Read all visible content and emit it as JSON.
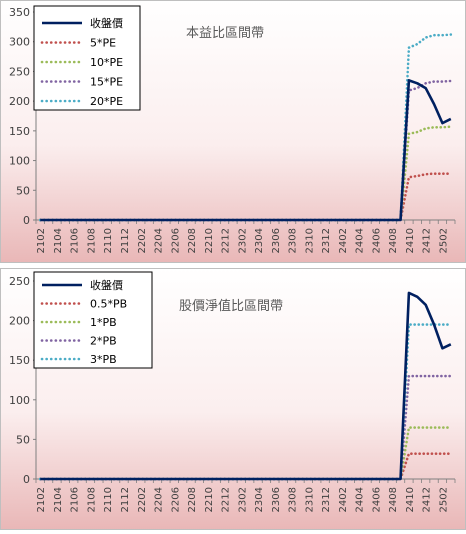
{
  "chart_data": [
    {
      "type": "line",
      "title": "本益比區間帶",
      "y_ticks": [
        0,
        50,
        100,
        150,
        200,
        250,
        300,
        350
      ],
      "ylim": [
        0,
        350
      ],
      "x_tick_labels": [
        "2102",
        "2104",
        "2106",
        "2108",
        "2110",
        "2112",
        "2202",
        "2204",
        "2206",
        "2208",
        "2210",
        "2212",
        "2302",
        "2304",
        "2306",
        "2308",
        "2310",
        "2312",
        "2402",
        "2404",
        "2406",
        "2408",
        "2410",
        "2412",
        "2502"
      ],
      "n_points": 50,
      "legend_position": "top-left",
      "grid": false,
      "series": [
        {
          "name": "收盤價",
          "color": "#002060",
          "style": "solid",
          "values": [
            0,
            0,
            0,
            0,
            0,
            0,
            0,
            0,
            0,
            0,
            0,
            0,
            0,
            0,
            0,
            0,
            0,
            0,
            0,
            0,
            0,
            0,
            0,
            0,
            0,
            0,
            0,
            0,
            0,
            0,
            0,
            0,
            0,
            0,
            0,
            0,
            0,
            0,
            0,
            0,
            0,
            0,
            0,
            0,
            235,
            230,
            222,
            195,
            163,
            170
          ]
        },
        {
          "name": "5*PE",
          "color": "#c0504d",
          "style": "dotted",
          "values": [
            0,
            0,
            0,
            0,
            0,
            0,
            0,
            0,
            0,
            0,
            0,
            0,
            0,
            0,
            0,
            0,
            0,
            0,
            0,
            0,
            0,
            0,
            0,
            0,
            0,
            0,
            0,
            0,
            0,
            0,
            0,
            0,
            0,
            0,
            0,
            0,
            0,
            0,
            0,
            0,
            0,
            0,
            0,
            0,
            72,
            74,
            77,
            78,
            78,
            78
          ]
        },
        {
          "name": "10*PE",
          "color": "#9bbb59",
          "style": "dotted",
          "values": [
            0,
            0,
            0,
            0,
            0,
            0,
            0,
            0,
            0,
            0,
            0,
            0,
            0,
            0,
            0,
            0,
            0,
            0,
            0,
            0,
            0,
            0,
            0,
            0,
            0,
            0,
            0,
            0,
            0,
            0,
            0,
            0,
            0,
            0,
            0,
            0,
            0,
            0,
            0,
            0,
            0,
            0,
            0,
            0,
            145,
            148,
            154,
            156,
            156,
            157
          ]
        },
        {
          "name": "15*PE",
          "color": "#8064a2",
          "style": "dotted",
          "values": [
            0,
            0,
            0,
            0,
            0,
            0,
            0,
            0,
            0,
            0,
            0,
            0,
            0,
            0,
            0,
            0,
            0,
            0,
            0,
            0,
            0,
            0,
            0,
            0,
            0,
            0,
            0,
            0,
            0,
            0,
            0,
            0,
            0,
            0,
            0,
            0,
            0,
            0,
            0,
            0,
            0,
            0,
            0,
            0,
            218,
            222,
            230,
            233,
            233,
            234
          ]
        },
        {
          "name": "20*PE",
          "color": "#4bacc6",
          "style": "dotted",
          "values": [
            0,
            0,
            0,
            0,
            0,
            0,
            0,
            0,
            0,
            0,
            0,
            0,
            0,
            0,
            0,
            0,
            0,
            0,
            0,
            0,
            0,
            0,
            0,
            0,
            0,
            0,
            0,
            0,
            0,
            0,
            0,
            0,
            0,
            0,
            0,
            0,
            0,
            0,
            0,
            0,
            0,
            0,
            0,
            0,
            290,
            296,
            307,
            311,
            311,
            312
          ]
        }
      ]
    },
    {
      "type": "line",
      "title": "股價淨值比區間帶",
      "y_ticks": [
        0,
        50,
        100,
        150,
        200,
        250
      ],
      "ylim": [
        0,
        250
      ],
      "x_tick_labels": [
        "2102",
        "2104",
        "2106",
        "2108",
        "2110",
        "2112",
        "2202",
        "2204",
        "2206",
        "2208",
        "2210",
        "2212",
        "2302",
        "2304",
        "2306",
        "2308",
        "2310",
        "2312",
        "2402",
        "2404",
        "2406",
        "2408",
        "2410",
        "2412",
        "2502"
      ],
      "n_points": 50,
      "legend_position": "top-left",
      "grid": false,
      "series": [
        {
          "name": "收盤價",
          "color": "#002060",
          "style": "solid",
          "values": [
            0,
            0,
            0,
            0,
            0,
            0,
            0,
            0,
            0,
            0,
            0,
            0,
            0,
            0,
            0,
            0,
            0,
            0,
            0,
            0,
            0,
            0,
            0,
            0,
            0,
            0,
            0,
            0,
            0,
            0,
            0,
            0,
            0,
            0,
            0,
            0,
            0,
            0,
            0,
            0,
            0,
            0,
            0,
            0,
            235,
            230,
            220,
            195,
            165,
            170
          ]
        },
        {
          "name": "0.5*PB",
          "color": "#c0504d",
          "style": "dotted",
          "values": [
            0,
            0,
            0,
            0,
            0,
            0,
            0,
            0,
            0,
            0,
            0,
            0,
            0,
            0,
            0,
            0,
            0,
            0,
            0,
            0,
            0,
            0,
            0,
            0,
            0,
            0,
            0,
            0,
            0,
            0,
            0,
            0,
            0,
            0,
            0,
            0,
            0,
            0,
            0,
            0,
            0,
            0,
            0,
            0,
            32,
            32,
            32,
            32,
            32,
            32
          ]
        },
        {
          "name": "1*PB",
          "color": "#9bbb59",
          "style": "dotted",
          "values": [
            0,
            0,
            0,
            0,
            0,
            0,
            0,
            0,
            0,
            0,
            0,
            0,
            0,
            0,
            0,
            0,
            0,
            0,
            0,
            0,
            0,
            0,
            0,
            0,
            0,
            0,
            0,
            0,
            0,
            0,
            0,
            0,
            0,
            0,
            0,
            0,
            0,
            0,
            0,
            0,
            0,
            0,
            0,
            0,
            65,
            65,
            65,
            65,
            65,
            65
          ]
        },
        {
          "name": "2*PB",
          "color": "#8064a2",
          "style": "dotted",
          "values": [
            0,
            0,
            0,
            0,
            0,
            0,
            0,
            0,
            0,
            0,
            0,
            0,
            0,
            0,
            0,
            0,
            0,
            0,
            0,
            0,
            0,
            0,
            0,
            0,
            0,
            0,
            0,
            0,
            0,
            0,
            0,
            0,
            0,
            0,
            0,
            0,
            0,
            0,
            0,
            0,
            0,
            0,
            0,
            0,
            130,
            130,
            130,
            130,
            130,
            130
          ]
        },
        {
          "name": "3*PB",
          "color": "#4bacc6",
          "style": "dotted",
          "values": [
            0,
            0,
            0,
            0,
            0,
            0,
            0,
            0,
            0,
            0,
            0,
            0,
            0,
            0,
            0,
            0,
            0,
            0,
            0,
            0,
            0,
            0,
            0,
            0,
            0,
            0,
            0,
            0,
            0,
            0,
            0,
            0,
            0,
            0,
            0,
            0,
            0,
            0,
            0,
            0,
            0,
            0,
            0,
            0,
            195,
            195,
            195,
            195,
            195,
            195
          ]
        }
      ]
    }
  ]
}
